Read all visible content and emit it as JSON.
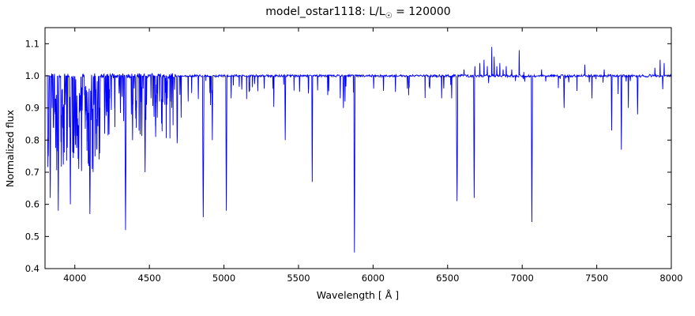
{
  "figure": {
    "title": {
      "prefix": "model_ostar1118: L/L",
      "sub": "☉",
      "suffix": " = 120000"
    },
    "xlabel": "Wavelength [ Å ]",
    "ylabel": "Normalized flux"
  },
  "chart_data": {
    "type": "line",
    "title": "model_ostar1118: L/L☉ = 120000",
    "xlabel": "Wavelength [ Å ]",
    "ylabel": "Normalized flux",
    "legend": "none",
    "grid": false,
    "line_color": "#0000ff",
    "axes_color": "#000000",
    "background_color": "#ffffff",
    "xlim": [
      3800,
      8000
    ],
    "ylim": [
      0.4,
      1.15
    ],
    "xticks": [
      4000,
      4500,
      5000,
      5500,
      6000,
      6500,
      7000,
      7500,
      8000
    ],
    "yticks": [
      0.4,
      0.5,
      0.6,
      0.7,
      0.8,
      0.9,
      1.0,
      1.1
    ],
    "continuum_flux": 1.0,
    "noise_regions": [
      {
        "range": [
          3800,
          4700
        ],
        "amp": 0.008
      },
      {
        "range": [
          4700,
          6500
        ],
        "amp": 0.0035
      },
      {
        "range": [
          6500,
          8000
        ],
        "amp": 0.004
      }
    ],
    "absorption_lines": [
      [
        3822,
        0.75,
        4
      ],
      [
        3835,
        0.62,
        4
      ],
      [
        3856,
        0.84,
        3
      ],
      [
        3868,
        0.88,
        3
      ],
      [
        3877,
        0.9,
        2
      ],
      [
        3889,
        0.58,
        4
      ],
      [
        3912,
        0.93,
        2
      ],
      [
        3920,
        0.89,
        3
      ],
      [
        3927,
        0.85,
        3
      ],
      [
        3936,
        0.91,
        2
      ],
      [
        3950,
        0.94,
        2
      ],
      [
        3964,
        0.84,
        3
      ],
      [
        3970,
        0.6,
        4
      ],
      [
        3995,
        0.91,
        2
      ],
      [
        4009,
        0.86,
        3
      ],
      [
        4026,
        0.71,
        4
      ],
      [
        4035,
        0.93,
        2
      ],
      [
        4069,
        0.88,
        3
      ],
      [
        4076,
        0.89,
        2
      ],
      [
        4089,
        0.83,
        3
      ],
      [
        4101,
        0.57,
        5
      ],
      [
        4116,
        0.87,
        3
      ],
      [
        4121,
        0.85,
        2
      ],
      [
        4128,
        0.91,
        2
      ],
      [
        4144,
        0.82,
        3
      ],
      [
        4200,
        0.82,
        3
      ],
      [
        4233,
        0.93,
        2
      ],
      [
        4267,
        0.9,
        2
      ],
      [
        4340,
        0.52,
        5
      ],
      [
        4379,
        0.88,
        2
      ],
      [
        4387,
        0.8,
        3
      ],
      [
        4414,
        0.9,
        2
      ],
      [
        4471,
        0.7,
        4
      ],
      [
        4481,
        0.91,
        2
      ],
      [
        4511,
        0.93,
        2
      ],
      [
        4542,
        0.81,
        3
      ],
      [
        4553,
        0.87,
        2
      ],
      [
        4568,
        0.92,
        2
      ],
      [
        4604,
        0.91,
        2
      ],
      [
        4620,
        0.93,
        2
      ],
      [
        4641,
        0.92,
        2
      ],
      [
        4650,
        0.9,
        2
      ],
      [
        4658,
        0.93,
        2
      ],
      [
        4686,
        0.79,
        3
      ],
      [
        4713,
        0.87,
        2
      ],
      [
        4760,
        0.92,
        2
      ],
      [
        4861,
        0.56,
        5
      ],
      [
        4922,
        0.8,
        3
      ],
      [
        5016,
        0.58,
        4
      ],
      [
        5048,
        0.93,
        2
      ],
      [
        5169,
        0.95,
        2
      ],
      [
        5270,
        0.96,
        2
      ],
      [
        5329,
        0.96,
        2
      ],
      [
        5411,
        0.8,
        3
      ],
      [
        5592,
        0.67,
        3
      ],
      [
        5696,
        0.94,
        2
      ],
      [
        5780,
        0.93,
        2
      ],
      [
        5801,
        0.9,
        3
      ],
      [
        5812,
        0.92,
        2
      ],
      [
        5875,
        0.45,
        4
      ],
      [
        6004,
        0.96,
        2
      ],
      [
        6150,
        0.95,
        2
      ],
      [
        6230,
        0.96,
        2
      ],
      [
        6380,
        0.96,
        2
      ],
      [
        6460,
        0.93,
        2
      ],
      [
        6527,
        0.93,
        2
      ],
      [
        6563,
        0.61,
        5
      ],
      [
        6678,
        0.62,
        4
      ],
      [
        7065,
        0.545,
        4
      ],
      [
        7281,
        0.9,
        3
      ],
      [
        7468,
        0.93,
        2
      ],
      [
        7600,
        0.83,
        3
      ],
      [
        7665,
        0.77,
        3
      ],
      [
        7712,
        0.9,
        2
      ],
      [
        7774,
        0.88,
        3
      ]
    ],
    "emission_lines": [
      [
        6610,
        1.02,
        2
      ],
      [
        6683,
        1.03,
        2
      ],
      [
        6716,
        1.04,
        2
      ],
      [
        6744,
        1.05,
        2
      ],
      [
        6766,
        1.03,
        2
      ],
      [
        6796,
        1.09,
        2
      ],
      [
        6812,
        1.06,
        2
      ],
      [
        6830,
        1.03,
        2
      ],
      [
        6850,
        1.04,
        2
      ],
      [
        6872,
        1.02,
        2
      ],
      [
        6893,
        1.03,
        2
      ],
      [
        6930,
        1.02,
        2
      ],
      [
        6980,
        1.08,
        2
      ],
      [
        7010,
        1.02,
        2
      ],
      [
        7130,
        1.02,
        2
      ],
      [
        7420,
        1.035,
        2
      ],
      [
        7550,
        1.02,
        2
      ],
      [
        7890,
        1.025,
        2
      ],
      [
        7925,
        1.05,
        2
      ],
      [
        7952,
        1.04,
        2
      ]
    ],
    "line_forest": [
      {
        "range": [
          3815,
          4180
        ],
        "count": 85,
        "depth": [
          0.7,
          0.96
        ],
        "hw": [
          1.0,
          3.5
        ]
      },
      {
        "range": [
          4180,
          4700
        ],
        "count": 40,
        "depth": [
          0.8,
          0.97
        ],
        "hw": [
          1.0,
          3.0
        ]
      },
      {
        "range": [
          4700,
          5400
        ],
        "count": 18,
        "depth": [
          0.9,
          0.985
        ],
        "hw": [
          1.0,
          2.5
        ]
      },
      {
        "range": [
          5400,
          6500
        ],
        "count": 16,
        "depth": [
          0.93,
          0.99
        ],
        "hw": [
          1.0,
          2.5
        ]
      },
      {
        "range": [
          6500,
          8000
        ],
        "count": 20,
        "depth": [
          0.94,
          0.995
        ],
        "hw": [
          1.0,
          2.5
        ]
      }
    ],
    "seed": 7
  }
}
